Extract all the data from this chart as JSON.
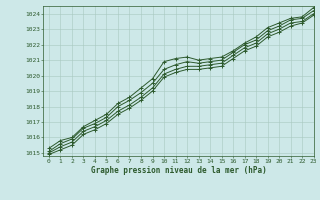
{
  "title": "Graphe pression niveau de la mer (hPa)",
  "xlim": [
    -0.5,
    23
  ],
  "ylim": [
    1014.8,
    1024.5
  ],
  "yticks": [
    1015,
    1016,
    1017,
    1018,
    1019,
    1020,
    1021,
    1022,
    1023,
    1024
  ],
  "xticks": [
    0,
    1,
    2,
    3,
    4,
    5,
    6,
    7,
    8,
    9,
    10,
    11,
    12,
    13,
    14,
    15,
    16,
    17,
    18,
    19,
    20,
    21,
    22,
    23
  ],
  "background_color": "#cde8e8",
  "line_color": "#2d5a2d",
  "grid_color": "#a8c8c0",
  "series": [
    [
      1015.3,
      1015.8,
      1016.0,
      1016.7,
      1017.1,
      1017.5,
      1018.2,
      1018.6,
      1019.2,
      1019.8,
      1020.9,
      1021.1,
      1021.2,
      1021.0,
      1021.1,
      1021.2,
      1021.6,
      1022.1,
      1022.5,
      1023.1,
      1023.4,
      1023.7,
      1023.8,
      1024.4
    ],
    [
      1015.1,
      1015.6,
      1015.9,
      1016.6,
      1016.9,
      1017.3,
      1018.0,
      1018.4,
      1018.9,
      1019.5,
      1020.4,
      1020.7,
      1020.9,
      1020.8,
      1020.9,
      1021.0,
      1021.5,
      1022.0,
      1022.3,
      1022.9,
      1023.2,
      1023.6,
      1023.7,
      1024.2
    ],
    [
      1015.0,
      1015.4,
      1015.7,
      1016.4,
      1016.7,
      1017.1,
      1017.7,
      1018.1,
      1018.6,
      1019.2,
      1020.1,
      1020.4,
      1020.6,
      1020.6,
      1020.7,
      1020.8,
      1021.3,
      1021.8,
      1022.1,
      1022.7,
      1023.0,
      1023.4,
      1023.5,
      1024.0
    ],
    [
      1014.9,
      1015.2,
      1015.5,
      1016.2,
      1016.5,
      1016.9,
      1017.5,
      1017.9,
      1018.4,
      1019.0,
      1019.9,
      1020.2,
      1020.4,
      1020.4,
      1020.5,
      1020.6,
      1021.1,
      1021.6,
      1021.9,
      1022.5,
      1022.8,
      1023.2,
      1023.4,
      1023.9
    ]
  ]
}
